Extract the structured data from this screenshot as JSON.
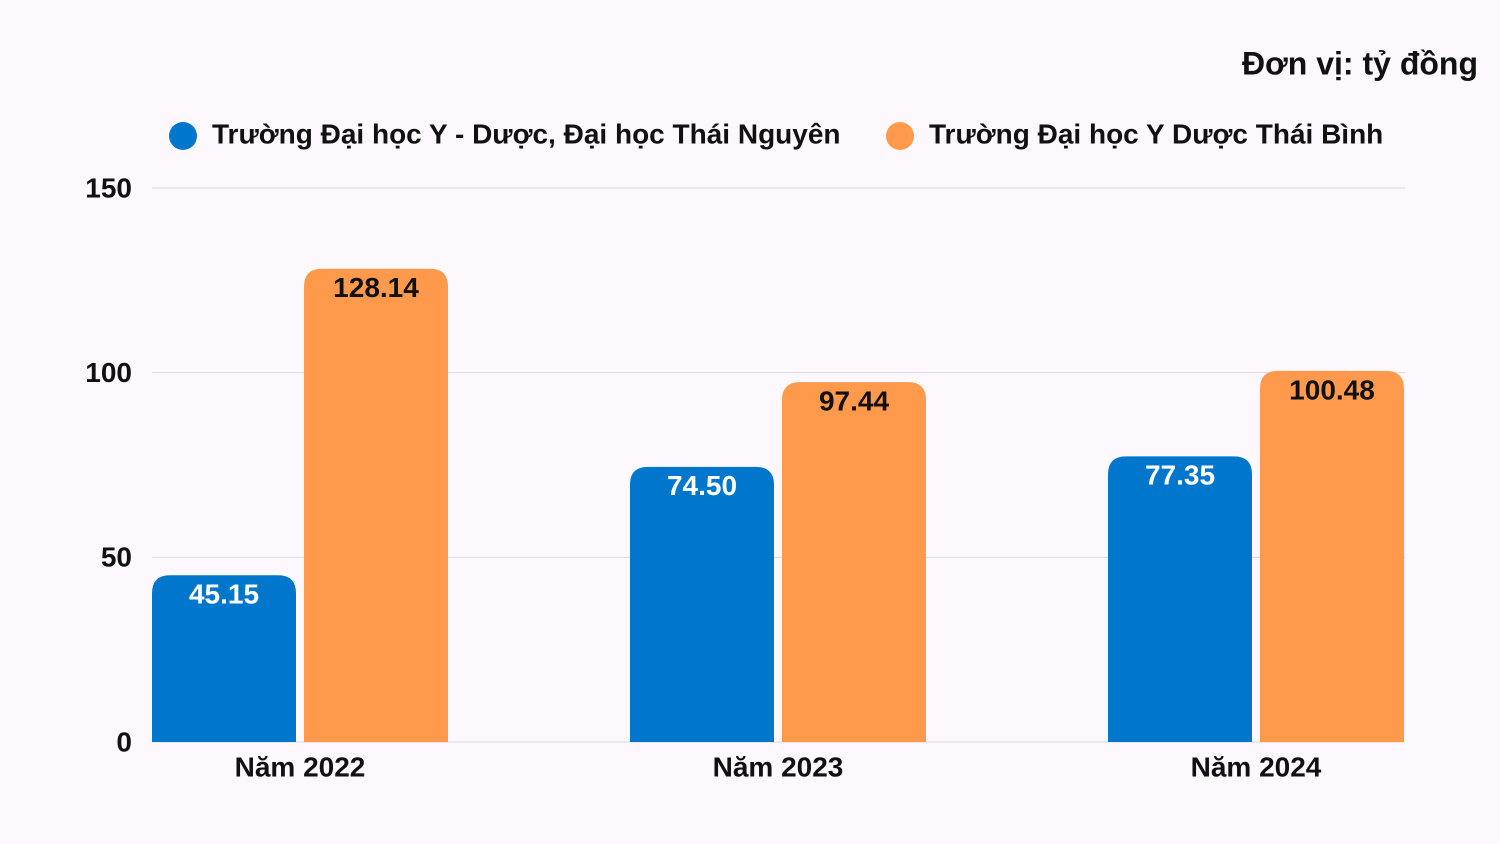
{
  "chart_data": {
    "type": "bar",
    "title": "Đơn vị: tỷ đồng",
    "categories": [
      "Năm 2022",
      "Năm 2023",
      "Năm 2024"
    ],
    "series": [
      {
        "name": "Trường Đại học Y - Dược, Đại học Thái Nguyên",
        "color": "#0077cc",
        "values": [
          45.15,
          74.5,
          77.35
        ],
        "value_labels": [
          "45.15",
          "74.50",
          "77.35"
        ]
      },
      {
        "name": "Trường Đại học Y Dược Thái Bình",
        "color": "#ff9a4c",
        "values": [
          128.14,
          97.44,
          100.48
        ],
        "value_labels": [
          "128.14",
          "97.44",
          "100.48"
        ]
      }
    ],
    "ylim": [
      0,
      150
    ],
    "yticks": [
      0,
      50,
      100,
      150
    ],
    "grid": true
  }
}
